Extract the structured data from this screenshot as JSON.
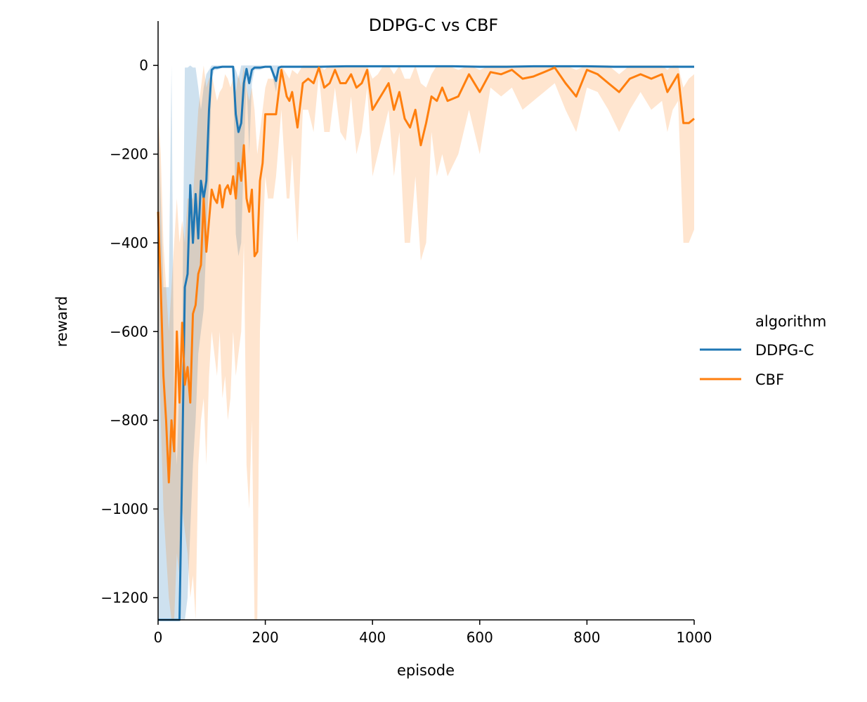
{
  "chart_data": {
    "type": "line",
    "title": "DDPG-C vs CBF",
    "xlabel": "episode",
    "ylabel": "reward",
    "xlim": [
      0,
      1000
    ],
    "ylim": [
      -1250,
      100
    ],
    "xticks": [
      0,
      200,
      400,
      600,
      800,
      1000
    ],
    "yticks": [
      0,
      -200,
      -400,
      -600,
      -800,
      -1000,
      -1200
    ],
    "xtick_labels": [
      "0",
      "200",
      "400",
      "600",
      "800",
      "1000"
    ],
    "ytick_labels": [
      "0",
      "−200",
      "−400",
      "−600",
      "−800",
      "−1000",
      "−1200"
    ],
    "grid": false,
    "legend": {
      "title": "algorithm",
      "placement": "right-outside",
      "entries": [
        "DDPG-C",
        "CBF"
      ]
    },
    "series": [
      {
        "name": "DDPG-C",
        "color": "#1f77b4",
        "x": [
          0,
          10,
          20,
          25,
          30,
          35,
          40,
          45,
          50,
          55,
          60,
          65,
          70,
          75,
          80,
          85,
          90,
          95,
          100,
          105,
          110,
          120,
          140,
          145,
          150,
          155,
          160,
          165,
          170,
          175,
          180,
          190,
          200,
          210,
          220,
          225,
          230,
          240,
          260,
          300,
          350,
          400,
          450,
          500,
          550,
          600,
          650,
          700,
          750,
          800,
          850,
          900,
          950,
          1000
        ],
        "y": [
          -1250,
          -1250,
          -1250,
          -1250,
          -1250,
          -1250,
          -1250,
          -900,
          -500,
          -470,
          -270,
          -400,
          -290,
          -390,
          -260,
          -300,
          -260,
          -100,
          -10,
          -5,
          -5,
          -3,
          -3,
          -110,
          -150,
          -130,
          -40,
          -8,
          -40,
          -10,
          -5,
          -5,
          -3,
          -3,
          -35,
          -5,
          -3,
          -3,
          -3,
          -3,
          -2,
          -2,
          -2,
          -2,
          -2,
          -3,
          -3,
          -2,
          -2,
          -2,
          -3,
          -3,
          -3,
          -3
        ],
        "band_upper": [
          -100,
          -500,
          -500,
          0,
          -800,
          -900,
          -700,
          -600,
          -5,
          -5,
          0,
          -5,
          -5,
          -50,
          -100,
          -50,
          -20,
          -10,
          0,
          0,
          0,
          0,
          0,
          -10,
          -30,
          0,
          0,
          0,
          0,
          0,
          0,
          0,
          0,
          0,
          0,
          0,
          0,
          0,
          0,
          0,
          0,
          0,
          0,
          0,
          0,
          0,
          0,
          0,
          0,
          0,
          0,
          0,
          0,
          0
        ],
        "band_lower": [
          -1250,
          -1250,
          -1250,
          -1250,
          -1250,
          -1250,
          -1250,
          -1250,
          -1250,
          -1200,
          -1050,
          -900,
          -800,
          -650,
          -600,
          -550,
          -400,
          -250,
          -30,
          -10,
          -10,
          -5,
          -5,
          -380,
          -430,
          -400,
          -200,
          -30,
          -200,
          -40,
          -10,
          -10,
          -5,
          -5,
          -60,
          -10,
          -5,
          -5,
          -5,
          -5,
          -5,
          -5,
          -5,
          -5,
          -5,
          -5,
          -5,
          -5,
          -5,
          -5,
          -5,
          -5,
          -5,
          -5
        ]
      },
      {
        "name": "CBF",
        "color": "#ff7f0e",
        "x": [
          0,
          5,
          10,
          15,
          20,
          25,
          30,
          35,
          40,
          45,
          50,
          55,
          60,
          65,
          70,
          75,
          80,
          85,
          90,
          95,
          100,
          105,
          110,
          115,
          120,
          125,
          130,
          135,
          140,
          145,
          150,
          155,
          160,
          165,
          170,
          175,
          180,
          185,
          190,
          195,
          200,
          205,
          210,
          215,
          220,
          230,
          240,
          245,
          250,
          260,
          270,
          280,
          290,
          300,
          310,
          320,
          330,
          340,
          350,
          360,
          370,
          380,
          390,
          400,
          410,
          420,
          430,
          440,
          450,
          460,
          470,
          480,
          490,
          500,
          510,
          520,
          530,
          540,
          560,
          580,
          600,
          620,
          640,
          660,
          680,
          700,
          720,
          740,
          760,
          780,
          800,
          820,
          840,
          860,
          880,
          900,
          920,
          940,
          950,
          960,
          970,
          980,
          990,
          1000
        ],
        "y": [
          -330,
          -500,
          -700,
          -800,
          -940,
          -800,
          -870,
          -600,
          -760,
          -580,
          -720,
          -680,
          -760,
          -560,
          -540,
          -470,
          -450,
          -300,
          -420,
          -350,
          -280,
          -300,
          -310,
          -270,
          -320,
          -280,
          -270,
          -290,
          -250,
          -300,
          -220,
          -260,
          -180,
          -300,
          -330,
          -280,
          -430,
          -420,
          -260,
          -220,
          -110,
          -110,
          -110,
          -110,
          -110,
          -10,
          -70,
          -80,
          -60,
          -140,
          -40,
          -30,
          -40,
          -5,
          -50,
          -40,
          -10,
          -40,
          -40,
          -20,
          -50,
          -40,
          -10,
          -100,
          -80,
          -60,
          -40,
          -100,
          -60,
          -120,
          -140,
          -100,
          -180,
          -130,
          -70,
          -80,
          -50,
          -80,
          -70,
          -20,
          -60,
          -15,
          -20,
          -10,
          -30,
          -25,
          -15,
          -5,
          -40,
          -70,
          -10,
          -20,
          -40,
          -60,
          -30,
          -20,
          -30,
          -20,
          -60,
          -40,
          -20,
          -130,
          -130,
          -120
        ],
        "band_upper": [
          -100,
          -200,
          -400,
          -500,
          -600,
          -500,
          -400,
          -300,
          -400,
          -350,
          -400,
          -300,
          -300,
          -300,
          -200,
          -100,
          -50,
          0,
          -50,
          -30,
          -20,
          -50,
          -80,
          -60,
          -50,
          -20,
          -30,
          -50,
          -30,
          -60,
          -20,
          -50,
          0,
          -50,
          -80,
          -50,
          -100,
          -200,
          -150,
          -100,
          -50,
          -30,
          -30,
          -30,
          -30,
          0,
          -20,
          -30,
          -10,
          -20,
          0,
          0,
          0,
          0,
          -10,
          0,
          0,
          0,
          0,
          0,
          0,
          0,
          0,
          -30,
          -20,
          0,
          0,
          -20,
          0,
          -30,
          -30,
          0,
          -40,
          -50,
          -20,
          0,
          0,
          0,
          -10,
          0,
          -10,
          0,
          0,
          0,
          0,
          0,
          0,
          0,
          0,
          -10,
          0,
          0,
          0,
          -20,
          0,
          0,
          0,
          0,
          -10,
          0,
          0,
          -50,
          -30,
          -20
        ],
        "band_lower": [
          -500,
          -800,
          -1000,
          -1100,
          -1200,
          -1250,
          -1250,
          -1100,
          -1150,
          -1000,
          -1050,
          -1100,
          -1200,
          -1150,
          -1250,
          -900,
          -800,
          -750,
          -900,
          -700,
          -600,
          -650,
          -700,
          -600,
          -750,
          -700,
          -800,
          -750,
          -600,
          -700,
          -650,
          -600,
          -400,
          -900,
          -1000,
          -800,
          -1250,
          -1250,
          -600,
          -400,
          -250,
          -300,
          -300,
          -300,
          -250,
          -100,
          -300,
          -300,
          -200,
          -400,
          -100,
          -100,
          -150,
          -20,
          -150,
          -150,
          -50,
          -150,
          -170,
          -70,
          -200,
          -150,
          -50,
          -250,
          -200,
          -150,
          -100,
          -250,
          -150,
          -400,
          -400,
          -250,
          -440,
          -400,
          -150,
          -250,
          -200,
          -250,
          -200,
          -100,
          -200,
          -50,
          -70,
          -50,
          -100,
          -80,
          -60,
          -40,
          -100,
          -150,
          -50,
          -60,
          -100,
          -150,
          -100,
          -60,
          -100,
          -80,
          -150,
          -100,
          -80,
          -400,
          -400,
          -370
        ]
      }
    ]
  }
}
